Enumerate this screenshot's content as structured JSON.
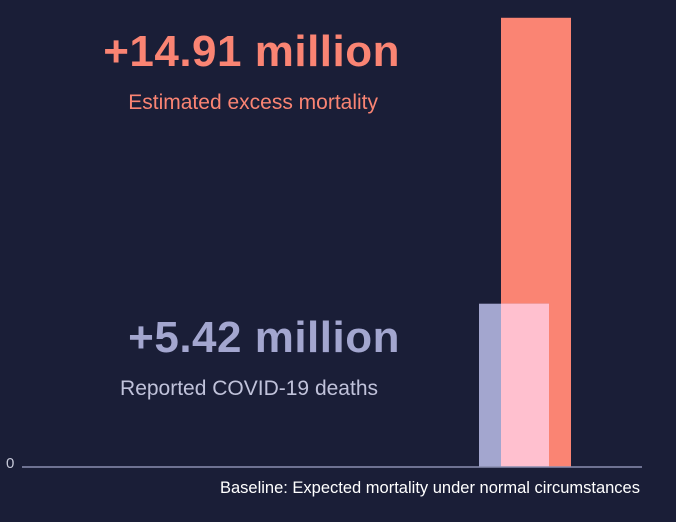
{
  "chart_data": {
    "type": "bar",
    "layout": "overlapping",
    "ylim": [
      0,
      15.5
    ],
    "y_ticks": [
      "0"
    ],
    "grid": false,
    "legend": "none",
    "baseline_label": "Baseline: Expected mortality under normal circumstances",
    "series": [
      {
        "value": 14.91,
        "value_label": "+14.91 million",
        "label": "Estimated excess mortality",
        "color": "#fa8473"
      },
      {
        "value": 5.42,
        "value_label": "+5.42 million",
        "label": "Reported COVID-19 deaths",
        "color": "#a3a6cf",
        "overlap_color": "#ffc0cf"
      }
    ],
    "axis_color": "#8a8db0",
    "background": "#1a1e37"
  }
}
